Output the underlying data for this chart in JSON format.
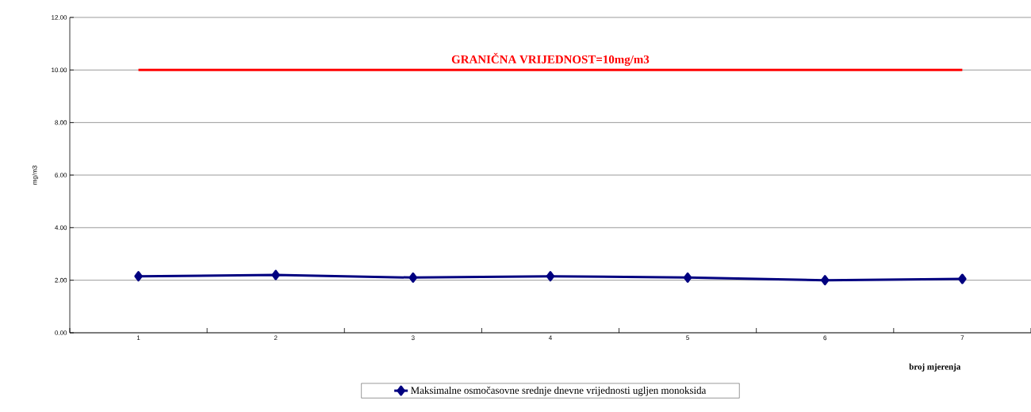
{
  "chart_data": {
    "type": "line",
    "xlabel": "broj mjerenja",
    "ylabel": "mg/m3",
    "categories": [
      "1",
      "2",
      "3",
      "4",
      "5",
      "6",
      "7"
    ],
    "series": [
      {
        "name": "Maksimalne osmočasovne srednje dnevne vrijednosti ugljen monoksida",
        "color": "#000080",
        "values": [
          2.15,
          2.2,
          2.1,
          2.15,
          2.1,
          2.0,
          2.05
        ]
      }
    ],
    "ylim": [
      0,
      12
    ],
    "yticks": [
      {
        "value": 0,
        "label": "0.00"
      },
      {
        "value": 2,
        "label": "2.00"
      },
      {
        "value": 4,
        "label": "4.00"
      },
      {
        "value": 6,
        "label": "6.00"
      },
      {
        "value": 8,
        "label": "8.00"
      },
      {
        "value": 10,
        "label": "10.00"
      },
      {
        "value": 12,
        "label": "12.00"
      }
    ],
    "ref_lines": [
      {
        "axis": "y",
        "value": 10,
        "label": "GRANIČNA VRIJEDNOST=10mg/m3",
        "color": "#ff0000"
      }
    ],
    "grid": "y",
    "legend": "bottom",
    "marker": "diamond",
    "line_style": "solid"
  }
}
